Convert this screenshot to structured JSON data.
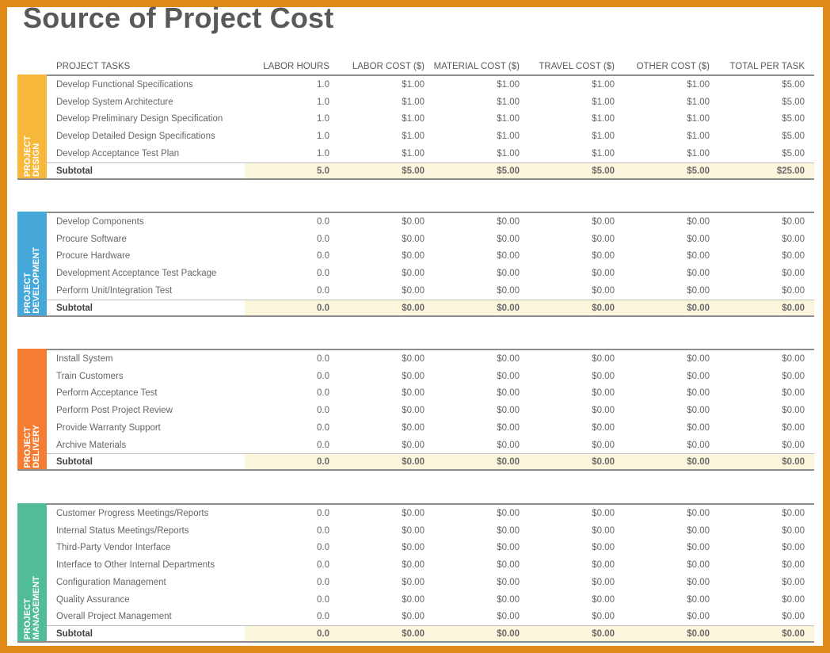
{
  "title": "Source of Project Cost",
  "headers": {
    "task": "PROJECT TASKS",
    "labor_hours": "LABOR HOURS",
    "labor_cost": "LABOR COST ($)",
    "material_cost": "MATERIAL COST ($)",
    "travel_cost": "TRAVEL COST ($)",
    "other_cost": "OTHER COST ($)",
    "total": "TOTAL PER TASK"
  },
  "colors": {
    "frame": "#df8a17",
    "design": "#f7b73a",
    "development": "#45a8d9",
    "delivery": "#f47c33",
    "management": "#52bc9a",
    "subtotal_fill": "#fbf5dc"
  },
  "sections": [
    {
      "label": "PROJECT\nDESIGN",
      "rows": [
        {
          "task": "Develop Functional Specifications",
          "hours": "1.0",
          "labor": "$1.00",
          "material": "$1.00",
          "travel": "$1.00",
          "other": "$1.00",
          "total": "$5.00"
        },
        {
          "task": "Develop System Architecture",
          "hours": "1.0",
          "labor": "$1.00",
          "material": "$1.00",
          "travel": "$1.00",
          "other": "$1.00",
          "total": "$5.00"
        },
        {
          "task": "Develop Preliminary Design Specification",
          "hours": "1.0",
          "labor": "$1.00",
          "material": "$1.00",
          "travel": "$1.00",
          "other": "$1.00",
          "total": "$5.00"
        },
        {
          "task": "Develop Detailed Design Specifications",
          "hours": "1.0",
          "labor": "$1.00",
          "material": "$1.00",
          "travel": "$1.00",
          "other": "$1.00",
          "total": "$5.00"
        },
        {
          "task": "Develop Acceptance Test Plan",
          "hours": "1.0",
          "labor": "$1.00",
          "material": "$1.00",
          "travel": "$1.00",
          "other": "$1.00",
          "total": "$5.00"
        }
      ],
      "subtotal": {
        "label": "Subtotal",
        "hours": "5.0",
        "labor": "$5.00",
        "material": "$5.00",
        "travel": "$5.00",
        "other": "$5.00",
        "total": "$25.00"
      }
    },
    {
      "label": "PROJECT\nDEVELOPMENT",
      "rows": [
        {
          "task": "Develop Components",
          "hours": "0.0",
          "labor": "$0.00",
          "material": "$0.00",
          "travel": "$0.00",
          "other": "$0.00",
          "total": "$0.00"
        },
        {
          "task": "Procure Software",
          "hours": "0.0",
          "labor": "$0.00",
          "material": "$0.00",
          "travel": "$0.00",
          "other": "$0.00",
          "total": "$0.00"
        },
        {
          "task": "Procure Hardware",
          "hours": "0.0",
          "labor": "$0.00",
          "material": "$0.00",
          "travel": "$0.00",
          "other": "$0.00",
          "total": "$0.00"
        },
        {
          "task": "Development Acceptance Test Package",
          "hours": "0.0",
          "labor": "$0.00",
          "material": "$0.00",
          "travel": "$0.00",
          "other": "$0.00",
          "total": "$0.00"
        },
        {
          "task": "Perform Unit/Integration Test",
          "hours": "0.0",
          "labor": "$0.00",
          "material": "$0.00",
          "travel": "$0.00",
          "other": "$0.00",
          "total": "$0.00"
        }
      ],
      "subtotal": {
        "label": "Subtotal",
        "hours": "0.0",
        "labor": "$0.00",
        "material": "$0.00",
        "travel": "$0.00",
        "other": "$0.00",
        "total": "$0.00"
      }
    },
    {
      "label": "PROJECT\nDELIVERY",
      "rows": [
        {
          "task": "Install System",
          "hours": "0.0",
          "labor": "$0.00",
          "material": "$0.00",
          "travel": "$0.00",
          "other": "$0.00",
          "total": "$0.00"
        },
        {
          "task": "Train Customers",
          "hours": "0.0",
          "labor": "$0.00",
          "material": "$0.00",
          "travel": "$0.00",
          "other": "$0.00",
          "total": "$0.00"
        },
        {
          "task": "Perform Acceptance Test",
          "hours": "0.0",
          "labor": "$0.00",
          "material": "$0.00",
          "travel": "$0.00",
          "other": "$0.00",
          "total": "$0.00"
        },
        {
          "task": "Perform Post Project Review",
          "hours": "0.0",
          "labor": "$0.00",
          "material": "$0.00",
          "travel": "$0.00",
          "other": "$0.00",
          "total": "$0.00"
        },
        {
          "task": "Provide Warranty Support",
          "hours": "0.0",
          "labor": "$0.00",
          "material": "$0.00",
          "travel": "$0.00",
          "other": "$0.00",
          "total": "$0.00"
        },
        {
          "task": "Archive Materials",
          "hours": "0.0",
          "labor": "$0.00",
          "material": "$0.00",
          "travel": "$0.00",
          "other": "$0.00",
          "total": "$0.00"
        }
      ],
      "subtotal": {
        "label": "Subtotal",
        "hours": "0.0",
        "labor": "$0.00",
        "material": "$0.00",
        "travel": "$0.00",
        "other": "$0.00",
        "total": "$0.00"
      }
    },
    {
      "label": "PROJECT\nMANAGEMENT",
      "rows": [
        {
          "task": "Customer Progress Meetings/Reports",
          "hours": "0.0",
          "labor": "$0.00",
          "material": "$0.00",
          "travel": "$0.00",
          "other": "$0.00",
          "total": "$0.00"
        },
        {
          "task": "Internal Status Meetings/Reports",
          "hours": "0.0",
          "labor": "$0.00",
          "material": "$0.00",
          "travel": "$0.00",
          "other": "$0.00",
          "total": "$0.00"
        },
        {
          "task": "Third-Party Vendor Interface",
          "hours": "0.0",
          "labor": "$0.00",
          "material": "$0.00",
          "travel": "$0.00",
          "other": "$0.00",
          "total": "$0.00"
        },
        {
          "task": "Interface to Other Internal Departments",
          "hours": "0.0",
          "labor": "$0.00",
          "material": "$0.00",
          "travel": "$0.00",
          "other": "$0.00",
          "total": "$0.00"
        },
        {
          "task": "Configuration Management",
          "hours": "0.0",
          "labor": "$0.00",
          "material": "$0.00",
          "travel": "$0.00",
          "other": "$0.00",
          "total": "$0.00"
        },
        {
          "task": "Quality Assurance",
          "hours": "0.0",
          "labor": "$0.00",
          "material": "$0.00",
          "travel": "$0.00",
          "other": "$0.00",
          "total": "$0.00"
        },
        {
          "task": "Overall Project Management",
          "hours": "0.0",
          "labor": "$0.00",
          "material": "$0.00",
          "travel": "$0.00",
          "other": "$0.00",
          "total": "$0.00"
        }
      ],
      "subtotal": {
        "label": "Subtotal",
        "hours": "0.0",
        "labor": "$0.00",
        "material": "$0.00",
        "travel": "$0.00",
        "other": "$0.00",
        "total": "$0.00"
      }
    }
  ]
}
